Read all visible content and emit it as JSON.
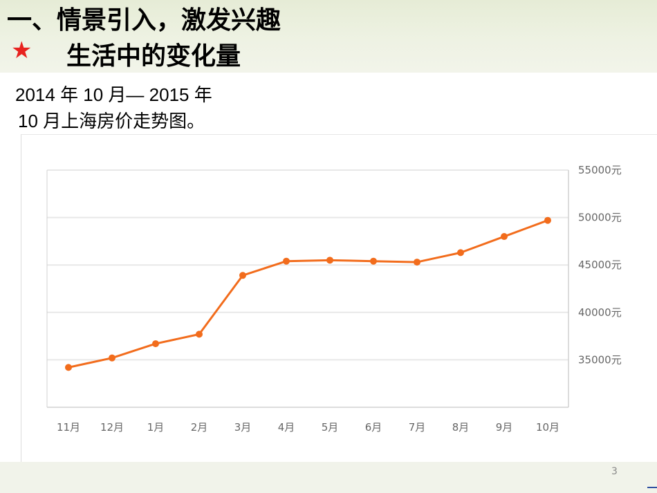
{
  "slide": {
    "title": "一、情景引入，激发兴趣",
    "star": "★",
    "subtitle": "生活中的变化量",
    "description_line1": "2014 年 10 月— 2015 年",
    "description_line2": "10 月上海房价走势图。",
    "page_number": "3"
  },
  "colors": {
    "line": "#f26c1c",
    "grid": "#e8e8e8",
    "axis": "#d0d0d0",
    "tick_text": "#666666",
    "star": "#e8221f"
  },
  "chart_data": {
    "type": "line",
    "categories": [
      "11月",
      "12月",
      "1月",
      "2月",
      "3月",
      "4月",
      "5月",
      "6月",
      "7月",
      "8月",
      "9月",
      "10月"
    ],
    "series": [
      {
        "values": [
          34200,
          35200,
          36700,
          37700,
          43900,
          45400,
          45500,
          45400,
          45300,
          46300,
          48000,
          49700
        ]
      }
    ],
    "ylim": [
      30000,
      55000
    ],
    "yticks": [
      35000,
      40000,
      45000,
      50000,
      55000
    ],
    "ytick_labels": [
      "35000元",
      "40000元",
      "45000元",
      "50000元",
      "55000元"
    ],
    "y_axis_position": "right",
    "grid": true,
    "legend": "none",
    "title": "",
    "xlabel": "",
    "ylabel": ""
  }
}
